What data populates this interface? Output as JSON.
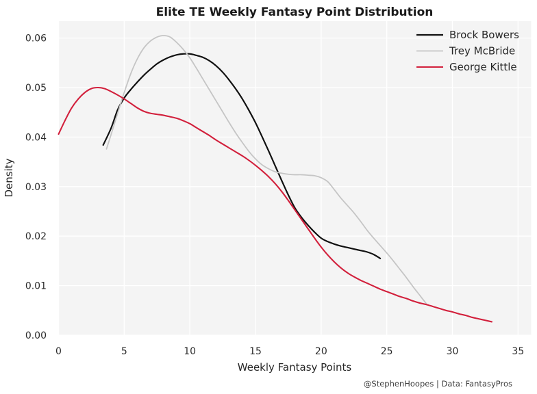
{
  "figure": {
    "attribution": "@StephenHoopes | Data: FantasyPros"
  },
  "chart_data": {
    "type": "line",
    "subtype": "kde-density",
    "title": "Elite TE Weekly Fantasy Point Distribution",
    "xlabel": "Weekly Fantasy Points",
    "ylabel": "Density",
    "xlim": [
      0,
      36
    ],
    "ylim": [
      0,
      0.0634
    ],
    "xticks": [
      0,
      5,
      10,
      15,
      20,
      25,
      30,
      35
    ],
    "yticks": [
      0.0,
      0.01,
      0.02,
      0.03,
      0.04,
      0.05,
      0.06
    ],
    "grid": true,
    "plot_background": "#f4f4f4",
    "gridline_color": "#ffffff",
    "legend_position": "upper right",
    "series": [
      {
        "name": "Brock Bowers",
        "color": "#111111",
        "line_width": 2.2,
        "points": [
          [
            3.4,
            0.0384
          ],
          [
            4,
            0.0418
          ],
          [
            4.5,
            0.0455
          ],
          [
            5,
            0.0479
          ],
          [
            5.5,
            0.0496
          ],
          [
            6,
            0.0511
          ],
          [
            6.5,
            0.0525
          ],
          [
            7,
            0.0537
          ],
          [
            7.5,
            0.0548
          ],
          [
            8,
            0.0556
          ],
          [
            8.5,
            0.0562
          ],
          [
            9,
            0.0566
          ],
          [
            9.5,
            0.0568
          ],
          [
            10,
            0.0568
          ],
          [
            10.5,
            0.0565
          ],
          [
            11,
            0.0561
          ],
          [
            11.5,
            0.0554
          ],
          [
            12,
            0.0544
          ],
          [
            12.5,
            0.0531
          ],
          [
            13,
            0.0515
          ],
          [
            13.5,
            0.0497
          ],
          [
            14,
            0.0477
          ],
          [
            14.5,
            0.0454
          ],
          [
            15,
            0.0429
          ],
          [
            15.5,
            0.0401
          ],
          [
            16,
            0.0372
          ],
          [
            16.5,
            0.0342
          ],
          [
            17,
            0.0312
          ],
          [
            17.5,
            0.0283
          ],
          [
            18,
            0.0257
          ],
          [
            18.5,
            0.0238
          ],
          [
            19,
            0.0222
          ],
          [
            19.5,
            0.0208
          ],
          [
            20,
            0.0196
          ],
          [
            20.5,
            0.0189
          ],
          [
            21,
            0.0184
          ],
          [
            21.5,
            0.018
          ],
          [
            22,
            0.0177
          ],
          [
            22.5,
            0.0174
          ],
          [
            23,
            0.0171
          ],
          [
            23.5,
            0.0168
          ],
          [
            24,
            0.0163
          ],
          [
            24.5,
            0.0155
          ]
        ]
      },
      {
        "name": "Trey McBride",
        "color": "#c5c5c5",
        "line_width": 1.8,
        "points": [
          [
            3.65,
            0.0376
          ],
          [
            4,
            0.0405
          ],
          [
            4.5,
            0.0448
          ],
          [
            5,
            0.049
          ],
          [
            5.5,
            0.0528
          ],
          [
            6,
            0.0558
          ],
          [
            6.5,
            0.058
          ],
          [
            7,
            0.0594
          ],
          [
            7.5,
            0.0602
          ],
          [
            8,
            0.0605
          ],
          [
            8.5,
            0.0602
          ],
          [
            9,
            0.0591
          ],
          [
            9.5,
            0.0577
          ],
          [
            10,
            0.056
          ],
          [
            10.5,
            0.0539
          ],
          [
            11,
            0.0517
          ],
          [
            11.5,
            0.0495
          ],
          [
            12,
            0.0473
          ],
          [
            12.5,
            0.0451
          ],
          [
            13,
            0.0429
          ],
          [
            13.5,
            0.0408
          ],
          [
            14,
            0.0389
          ],
          [
            14.5,
            0.0371
          ],
          [
            15,
            0.0356
          ],
          [
            15.5,
            0.0344
          ],
          [
            16,
            0.0336
          ],
          [
            16.5,
            0.033
          ],
          [
            17,
            0.0327
          ],
          [
            17.5,
            0.0325
          ],
          [
            18,
            0.0324
          ],
          [
            18.5,
            0.0324
          ],
          [
            19,
            0.0323
          ],
          [
            19.5,
            0.0322
          ],
          [
            20,
            0.0318
          ],
          [
            20.5,
            0.031
          ],
          [
            21,
            0.0294
          ],
          [
            21.5,
            0.0277
          ],
          [
            22,
            0.0262
          ],
          [
            22.5,
            0.0247
          ],
          [
            23,
            0.023
          ],
          [
            23.5,
            0.0212
          ],
          [
            24,
            0.0196
          ],
          [
            24.5,
            0.0181
          ],
          [
            25,
            0.0166
          ],
          [
            25.5,
            0.015
          ],
          [
            26,
            0.0133
          ],
          [
            26.5,
            0.0116
          ],
          [
            27,
            0.0098
          ],
          [
            27.5,
            0.0081
          ],
          [
            28,
            0.0064
          ]
        ]
      },
      {
        "name": "George Kittle",
        "color": "#d2203c",
        "line_width": 2.1,
        "points": [
          [
            0,
            0.0406
          ],
          [
            0.5,
            0.0434
          ],
          [
            1,
            0.0459
          ],
          [
            1.5,
            0.0477
          ],
          [
            2,
            0.049
          ],
          [
            2.5,
            0.0498
          ],
          [
            3,
            0.05
          ],
          [
            3.5,
            0.0498
          ],
          [
            4,
            0.0492
          ],
          [
            4.5,
            0.0485
          ],
          [
            5,
            0.0477
          ],
          [
            5.5,
            0.0468
          ],
          [
            6,
            0.0459
          ],
          [
            6.5,
            0.0452
          ],
          [
            7,
            0.0448
          ],
          [
            7.5,
            0.0446
          ],
          [
            8,
            0.0444
          ],
          [
            8.5,
            0.0441
          ],
          [
            9,
            0.0438
          ],
          [
            9.5,
            0.0433
          ],
          [
            10,
            0.0427
          ],
          [
            10.5,
            0.0419
          ],
          [
            11,
            0.0411
          ],
          [
            11.5,
            0.0403
          ],
          [
            12,
            0.0394
          ],
          [
            12.5,
            0.0386
          ],
          [
            13,
            0.0378
          ],
          [
            13.5,
            0.037
          ],
          [
            14,
            0.0362
          ],
          [
            14.5,
            0.0353
          ],
          [
            15,
            0.0343
          ],
          [
            15.5,
            0.0332
          ],
          [
            16,
            0.032
          ],
          [
            16.5,
            0.0306
          ],
          [
            17,
            0.029
          ],
          [
            17.5,
            0.0272
          ],
          [
            18,
            0.0253
          ],
          [
            18.5,
            0.0234
          ],
          [
            19,
            0.0215
          ],
          [
            19.5,
            0.0196
          ],
          [
            20,
            0.0178
          ],
          [
            20.5,
            0.0162
          ],
          [
            21,
            0.0148
          ],
          [
            21.5,
            0.0136
          ],
          [
            22,
            0.0126
          ],
          [
            22.5,
            0.0118
          ],
          [
            23,
            0.0111
          ],
          [
            23.5,
            0.0105
          ],
          [
            24,
            0.0099
          ],
          [
            24.5,
            0.0093
          ],
          [
            25,
            0.0088
          ],
          [
            25.5,
            0.0083
          ],
          [
            26,
            0.0078
          ],
          [
            26.5,
            0.0074
          ],
          [
            27,
            0.0069
          ],
          [
            27.5,
            0.0065
          ],
          [
            28,
            0.0062
          ],
          [
            28.5,
            0.0058
          ],
          [
            29,
            0.0054
          ],
          [
            29.5,
            0.005
          ],
          [
            30,
            0.0047
          ],
          [
            30.5,
            0.0043
          ],
          [
            31,
            0.004
          ],
          [
            31.5,
            0.0036
          ],
          [
            32,
            0.0033
          ],
          [
            32.5,
            0.003
          ],
          [
            33,
            0.0027
          ]
        ]
      }
    ]
  }
}
